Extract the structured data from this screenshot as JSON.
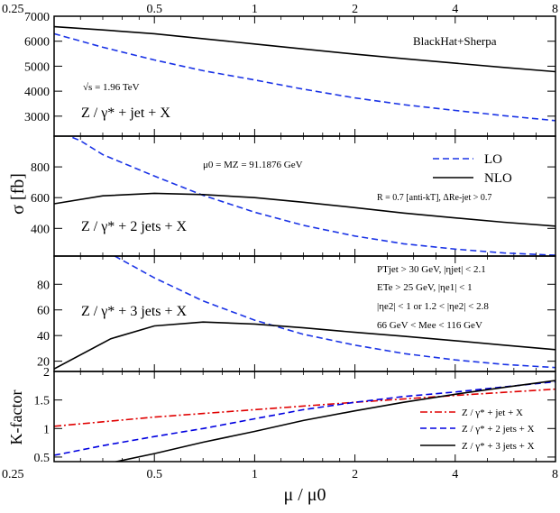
{
  "chart_data": {
    "type": "line",
    "x_scale": "log",
    "x_ticks": [
      "0.25",
      "0.5",
      "1",
      "2",
      "4",
      "8"
    ],
    "x_tick_values": [
      0.25,
      0.5,
      1,
      2,
      4,
      8
    ],
    "xlim": [
      0.25,
      8
    ],
    "xlabel": "μ / μ0",
    "ylabel_cross_section": "σ [fb]",
    "ylabel_k": "K-factor",
    "top_label": "BlackHat+Sherpa",
    "panels": [
      {
        "process": "Z / γ* + jet + X",
        "ylim": [
          2200,
          7000
        ],
        "yticks": [
          3000,
          4000,
          5000,
          6000,
          7000
        ],
        "notes": [
          "BlackHat+Sherpa",
          "√s = 1.96 TeV"
        ],
        "series": [
          {
            "name": "LO",
            "style": "dashed",
            "x": [
              0.25,
              0.35,
              0.5,
              0.7,
              1,
              1.4,
              2,
              2.8,
              4,
              5.6,
              8
            ],
            "values": [
              6300,
              5760,
              5250,
              4820,
              4450,
              4080,
              3730,
              3460,
              3230,
              3020,
              2820
            ]
          },
          {
            "name": "NLO",
            "style": "solid",
            "x": [
              0.25,
              0.35,
              0.5,
              0.7,
              1,
              1.4,
              2,
              2.8,
              4,
              5.6,
              8
            ],
            "values": [
              6580,
              6450,
              6300,
              6100,
              5890,
              5690,
              5480,
              5300,
              5120,
              4950,
              4780
            ]
          }
        ]
      },
      {
        "process": "Z / γ* + 2 jets + X",
        "ylim": [
          220,
          1000
        ],
        "yticks": [
          400,
          600,
          800
        ],
        "notes": [
          "μ0 = MZ = 91.1876 GeV",
          "R = 0.7 [anti-kT], ΔRe-jet > 0.7"
        ],
        "legend": [
          "LO",
          "NLO"
        ],
        "series": [
          {
            "name": "LO",
            "style": "dashed",
            "x": [
              0.25,
              0.3,
              0.35,
              0.5,
              0.7,
              1,
              1.4,
              2,
              2.8,
              4,
              5.6,
              8
            ],
            "values": [
              1040,
              970,
              880,
              740,
              615,
              505,
              420,
              350,
              300,
              265,
              240,
              225
            ]
          },
          {
            "name": "NLO",
            "style": "solid",
            "x": [
              0.25,
              0.35,
              0.5,
              0.7,
              1,
              1.4,
              2,
              2.8,
              4,
              5.6,
              8
            ],
            "values": [
              560,
              612,
              628,
              620,
              600,
              570,
              535,
              500,
              468,
              440,
              415
            ]
          }
        ]
      },
      {
        "process": "Z / γ* + 3 jets + X",
        "ylim": [
          12,
          102
        ],
        "yticks": [
          20,
          40,
          60,
          80
        ],
        "notes": [
          "PTjet > 30 GeV, |ηjet| < 2.1",
          "ETe > 25 GeV, |ηe1| < 1",
          "|ηe2| < 1 or 1.2 < |ηe2| < 2.8",
          "66 GeV < Mee < 116 GeV"
        ],
        "series": [
          {
            "name": "LO",
            "style": "dashed",
            "x": [
              0.38,
              0.5,
              0.7,
              1,
              1.4,
              2,
              2.8,
              4,
              5.6,
              8
            ],
            "values": [
              102,
              85,
              67,
              52,
              41,
              32.5,
              26,
              21,
              17.5,
              15
            ]
          },
          {
            "name": "NLO",
            "style": "solid",
            "x": [
              0.25,
              0.37,
              0.5,
              0.7,
              1,
              1.4,
              2,
              2.8,
              4,
              5.6,
              8
            ],
            "values": [
              14,
              37.5,
              47.5,
              50.5,
              49,
              46,
              42.5,
              39.5,
              36,
              32.5,
              29
            ]
          }
        ]
      },
      {
        "process": "K-factor",
        "ylim": [
          0.42,
          2
        ],
        "yticks": [
          0.5,
          1,
          1.5,
          2
        ],
        "legend": [
          "Z / γ* + jet + X",
          "Z / γ* + 2 jets + X",
          "Z / γ* + 3 jets + X"
        ],
        "series": [
          {
            "name": "Z / γ* + jet + X",
            "style": "dashdot",
            "color": "#e00000",
            "x": [
              0.25,
              0.5,
              1,
              2,
              4,
              8
            ],
            "values": [
              1.04,
              1.2,
              1.33,
              1.46,
              1.58,
              1.69
            ]
          },
          {
            "name": "Z / γ* + 2 jets + X",
            "style": "dashed",
            "color": "#0000e0",
            "x": [
              0.25,
              0.35,
              0.5,
              0.7,
              1,
              1.4,
              2,
              2.8,
              4,
              5.6,
              8
            ],
            "values": [
              0.53,
              0.7,
              0.86,
              1.0,
              1.17,
              1.33,
              1.46,
              1.56,
              1.64,
              1.73,
              1.82
            ]
          },
          {
            "name": "Z / γ* + 3 jets + X",
            "style": "solid",
            "color": "#000000",
            "x": [
              0.3,
              0.37,
              0.5,
              0.7,
              1,
              1.4,
              2,
              2.8,
              4,
              5.6,
              8
            ],
            "values": [
              0.22,
              0.4,
              0.56,
              0.76,
              0.95,
              1.14,
              1.31,
              1.46,
              1.6,
              1.72,
              1.84
            ]
          }
        ]
      }
    ]
  }
}
